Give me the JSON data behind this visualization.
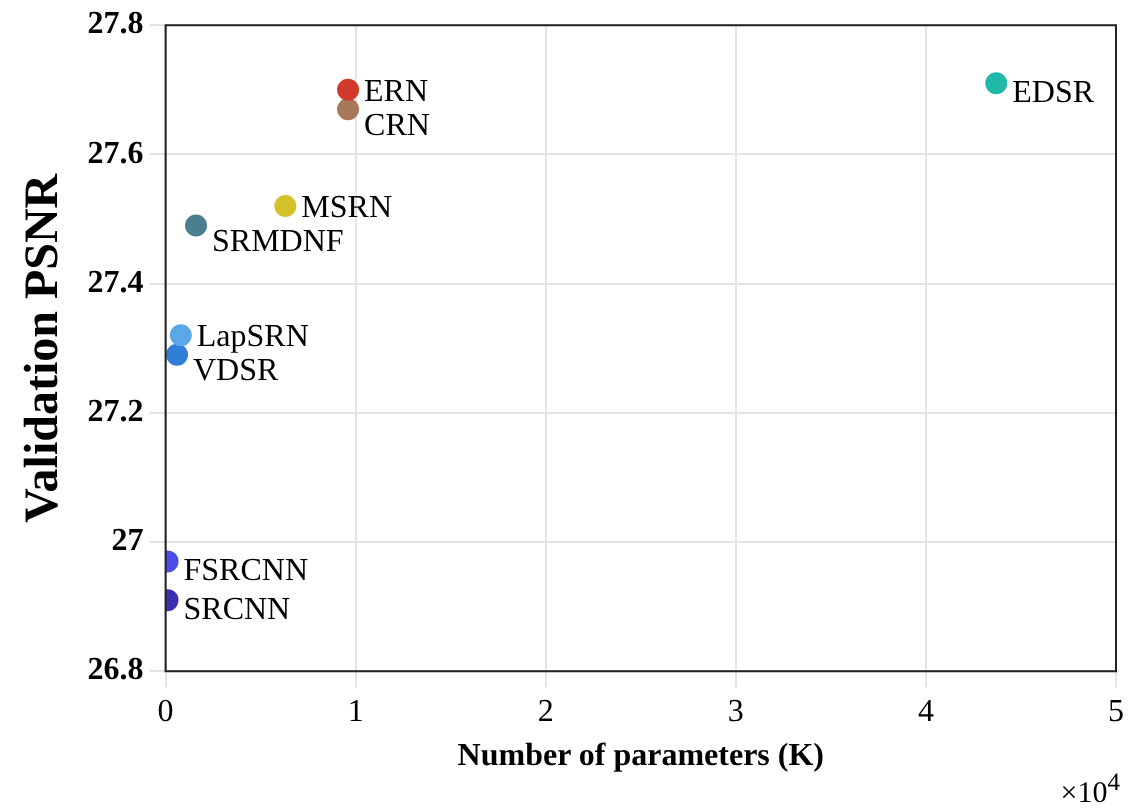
{
  "chart_data": {
    "type": "scatter",
    "xlabel": "Number of parameters (K)",
    "ylabel": "Validation PSNR",
    "xlim": [
      0,
      5
    ],
    "xticks": [
      0,
      1,
      2,
      3,
      4,
      5
    ],
    "ylim": [
      26.8,
      27.8
    ],
    "yticks": [
      26.8,
      27,
      27.2,
      27.4,
      27.6,
      27.8
    ],
    "grid": true,
    "legend": false,
    "marker": "circle",
    "annotations": [
      "×10$^{4}$"
    ],
    "series": [
      {
        "name": "ERN",
        "color": "#d03a2a",
        "x": [
          0.96
        ],
        "values": [
          27.7
        ]
      },
      {
        "name": "CRN",
        "color": "#a8785a",
        "x": [
          0.96
        ],
        "values": [
          27.67
        ]
      },
      {
        "name": "EDSR",
        "color": "#20b8a8",
        "x": [
          4.37
        ],
        "values": [
          27.71
        ]
      },
      {
        "name": "MSRN",
        "color": "#d4c22a",
        "x": [
          0.63
        ],
        "values": [
          27.52
        ]
      },
      {
        "name": "SRMDNF",
        "color": "#4a7f8f",
        "x": [
          0.16
        ],
        "values": [
          27.49
        ]
      },
      {
        "name": "LapSRN",
        "color": "#5aa8e8",
        "x": [
          0.08
        ],
        "values": [
          27.32
        ]
      },
      {
        "name": "VDSR",
        "color": "#2f7fd8",
        "x": [
          0.06
        ],
        "values": [
          27.29
        ]
      },
      {
        "name": "FSRCNN",
        "color": "#4a4de8",
        "x": [
          0.01
        ],
        "values": [
          26.97
        ]
      },
      {
        "name": "SRCNN",
        "color": "#3a2fb0",
        "x": [
          0.01
        ],
        "values": [
          26.91
        ]
      }
    ]
  }
}
